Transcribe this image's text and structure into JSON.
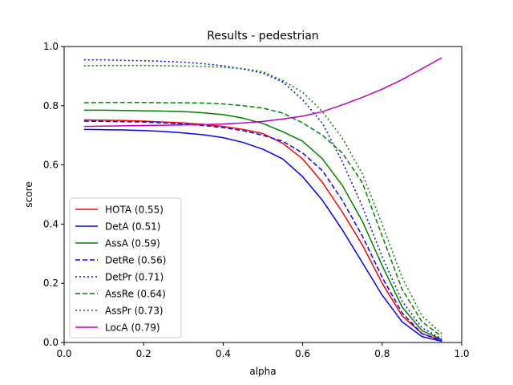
{
  "chart_data": {
    "type": "line",
    "title": "Results - pedestrian",
    "xlabel": "alpha",
    "ylabel": "score",
    "xlim": [
      0.0,
      1.0
    ],
    "ylim": [
      0.0,
      1.0
    ],
    "xticks": [
      "0.0",
      "0.2",
      "0.4",
      "0.6",
      "0.8",
      "1.0"
    ],
    "yticks": [
      "0.0",
      "0.2",
      "0.4",
      "0.6",
      "0.8",
      "1.0"
    ],
    "grid": false,
    "legend_position": "lower-left",
    "x": [
      0.05,
      0.1,
      0.15,
      0.2,
      0.25,
      0.3,
      0.35,
      0.4,
      0.45,
      0.5,
      0.55,
      0.6,
      0.65,
      0.7,
      0.75,
      0.8,
      0.85,
      0.9,
      0.95
    ],
    "series": [
      {
        "name": "HOTA (0.55)",
        "color": "#ff0000",
        "dash": "solid",
        "values": [
          0.752,
          0.751,
          0.75,
          0.748,
          0.745,
          0.742,
          0.737,
          0.73,
          0.72,
          0.706,
          0.673,
          0.62,
          0.54,
          0.44,
          0.33,
          0.2,
          0.09,
          0.03,
          0.008
        ]
      },
      {
        "name": "DetA (0.51)",
        "color": "#0000ff",
        "dash": "solid",
        "values": [
          0.72,
          0.719,
          0.718,
          0.716,
          0.713,
          0.708,
          0.702,
          0.692,
          0.676,
          0.653,
          0.62,
          0.56,
          0.48,
          0.38,
          0.27,
          0.16,
          0.07,
          0.02,
          0.004
        ]
      },
      {
        "name": "AssA (0.59)",
        "color": "#008000",
        "dash": "solid",
        "values": [
          0.785,
          0.785,
          0.784,
          0.783,
          0.782,
          0.78,
          0.776,
          0.77,
          0.758,
          0.74,
          0.712,
          0.68,
          0.62,
          0.53,
          0.41,
          0.26,
          0.12,
          0.04,
          0.01
        ]
      },
      {
        "name": "DetRe (0.56)",
        "color": "#0000ff",
        "dash": "dashed",
        "values": [
          0.748,
          0.747,
          0.746,
          0.745,
          0.742,
          0.738,
          0.733,
          0.726,
          0.716,
          0.7,
          0.68,
          0.64,
          0.58,
          0.48,
          0.36,
          0.22,
          0.1,
          0.03,
          0.006
        ]
      },
      {
        "name": "DetPr (0.71)",
        "color": "#0000ff",
        "dash": "dotted",
        "values": [
          0.955,
          0.955,
          0.953,
          0.952,
          0.95,
          0.947,
          0.942,
          0.935,
          0.924,
          0.91,
          0.88,
          0.82,
          0.74,
          0.61,
          0.46,
          0.29,
          0.14,
          0.05,
          0.012
        ]
      },
      {
        "name": "AssRe (0.64)",
        "color": "#008000",
        "dash": "dashed",
        "values": [
          0.81,
          0.811,
          0.811,
          0.811,
          0.81,
          0.81,
          0.809,
          0.806,
          0.8,
          0.792,
          0.775,
          0.742,
          0.7,
          0.64,
          0.54,
          0.36,
          0.18,
          0.07,
          0.02
        ]
      },
      {
        "name": "AssPr (0.73)",
        "color": "#008000",
        "dash": "dotted",
        "values": [
          0.935,
          0.936,
          0.936,
          0.936,
          0.935,
          0.934,
          0.933,
          0.93,
          0.925,
          0.915,
          0.885,
          0.845,
          0.78,
          0.69,
          0.57,
          0.4,
          0.22,
          0.09,
          0.03
        ]
      },
      {
        "name": "LocA (0.79)",
        "color": "#bf00bf",
        "dash": "solid",
        "values": [
          0.73,
          0.731,
          0.732,
          0.733,
          0.734,
          0.735,
          0.736,
          0.738,
          0.742,
          0.747,
          0.755,
          0.765,
          0.78,
          0.803,
          0.828,
          0.856,
          0.888,
          0.925,
          0.962
        ]
      }
    ]
  }
}
